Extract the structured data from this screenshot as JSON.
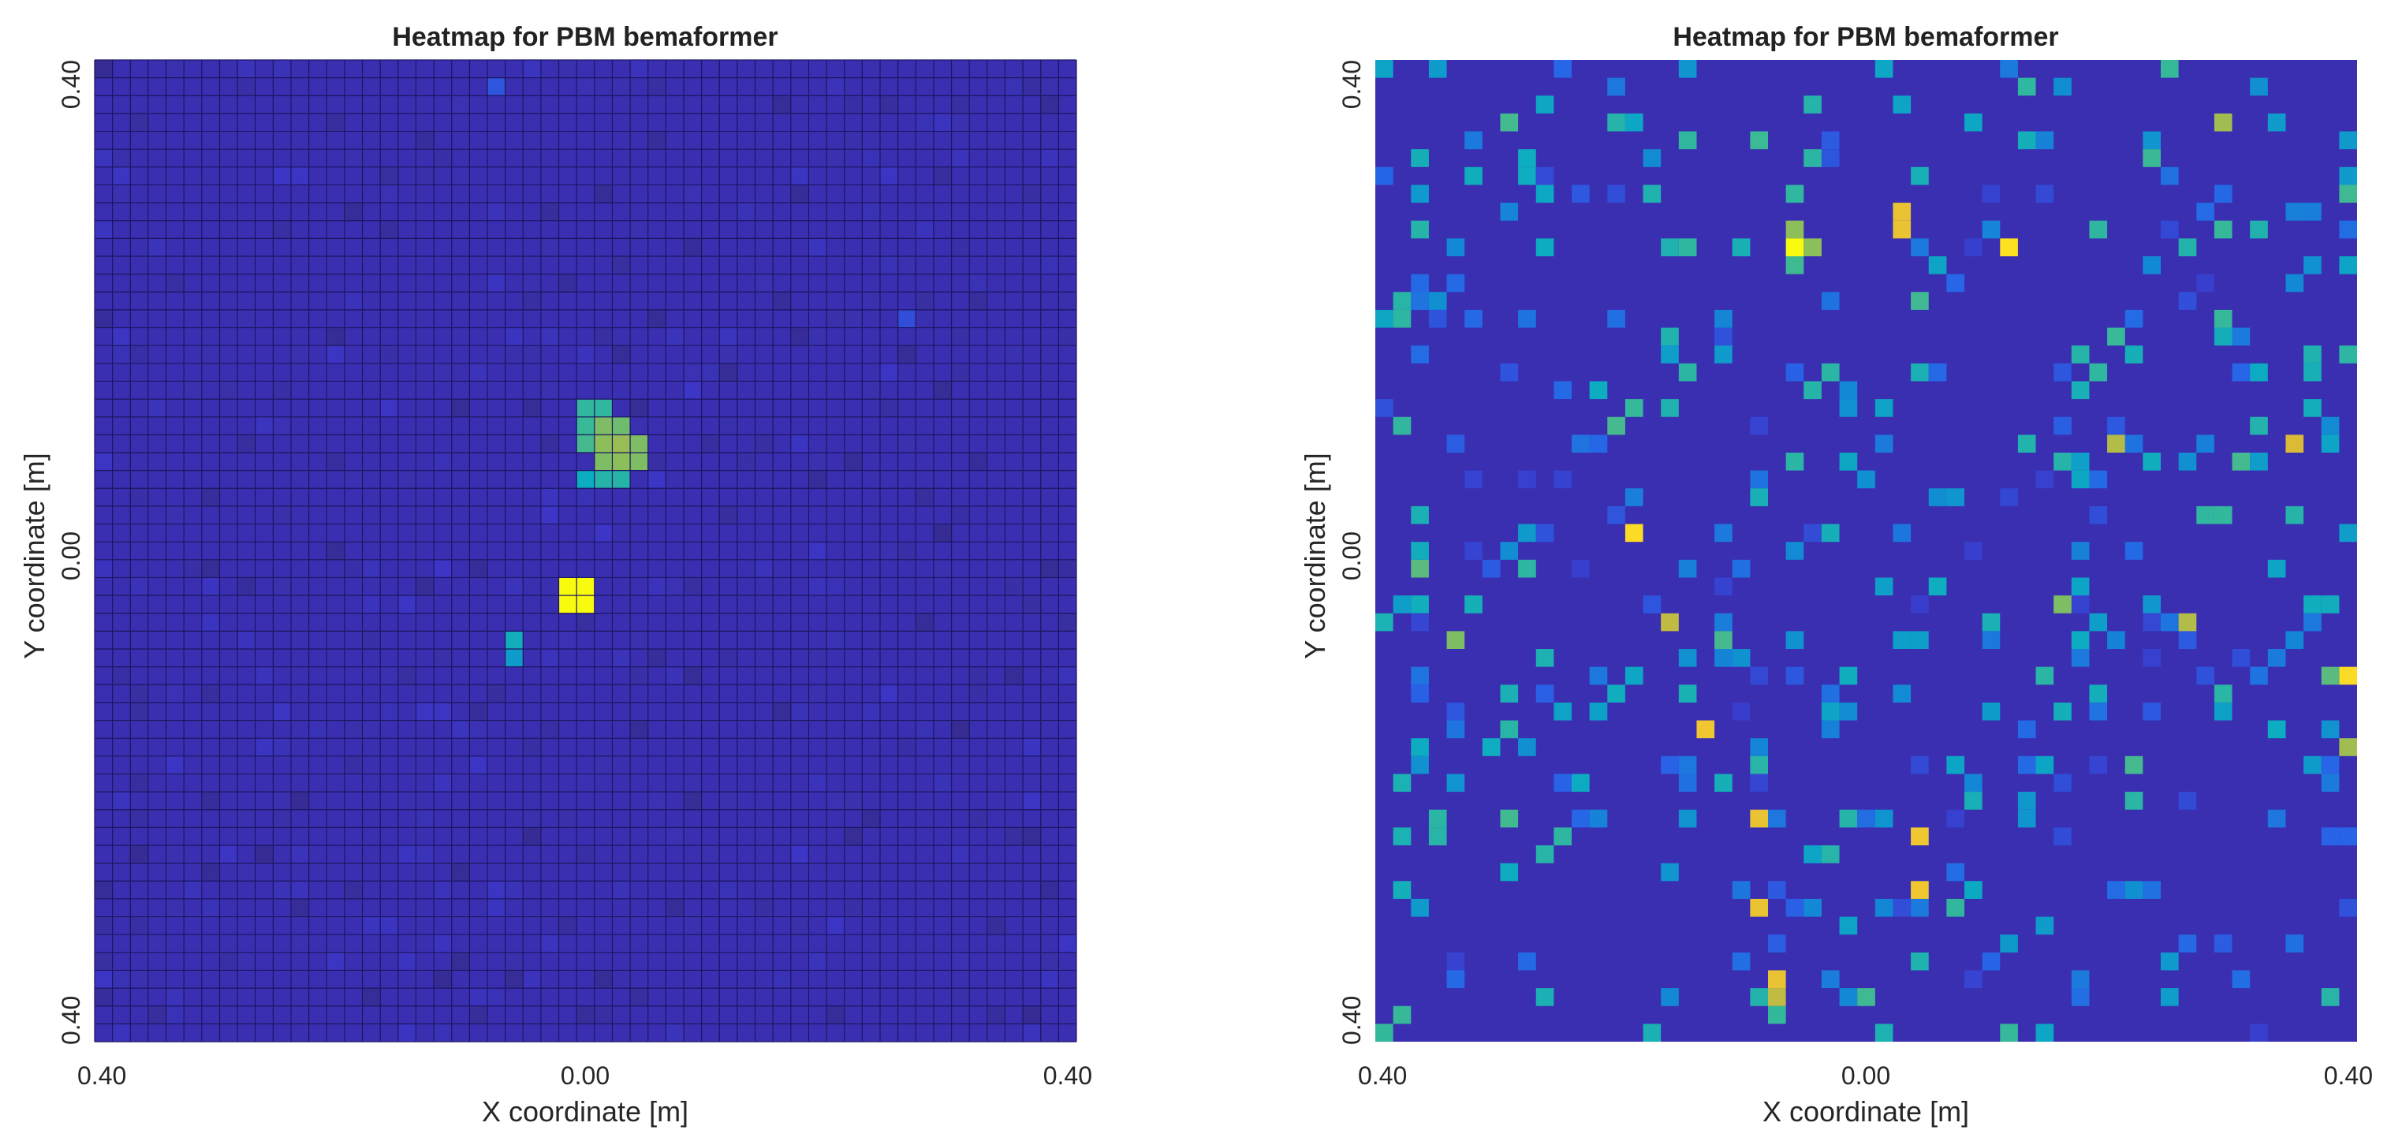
{
  "colors": {
    "background": "#3a2fb0",
    "gridline": "#1c1660",
    "colormap": "parula"
  },
  "chart_data": [
    {
      "type": "heatmap",
      "title": "Heatmap for PBM bemaformer",
      "xlabel": "X coordinate [m]",
      "ylabel": "Y coordinate [m]",
      "xlim": [
        -0.4,
        0.4
      ],
      "ylim": [
        -0.4,
        0.4
      ],
      "grid_n": 55,
      "grid": "on",
      "x_ticks": [
        "0.40",
        "0.00",
        "0.40"
      ],
      "y_ticks": [
        "0.40",
        "0.00",
        "0.40"
      ],
      "background_level": 0.04,
      "cells": [
        {
          "col": 22,
          "row": 1,
          "v": 0.18
        },
        {
          "col": 45,
          "row": 14,
          "v": 0.16
        },
        {
          "col": 23,
          "row": 29,
          "v": 0.08
        },
        {
          "col": 27,
          "row": 19,
          "v": 0.58
        },
        {
          "col": 28,
          "row": 19,
          "v": 0.58
        },
        {
          "col": 28,
          "row": 20,
          "v": 0.7
        },
        {
          "col": 29,
          "row": 20,
          "v": 0.68
        },
        {
          "col": 27,
          "row": 20,
          "v": 0.6
        },
        {
          "col": 28,
          "row": 21,
          "v": 0.72
        },
        {
          "col": 29,
          "row": 21,
          "v": 0.74
        },
        {
          "col": 30,
          "row": 21,
          "v": 0.7
        },
        {
          "col": 27,
          "row": 21,
          "v": 0.62
        },
        {
          "col": 28,
          "row": 22,
          "v": 0.7
        },
        {
          "col": 29,
          "row": 22,
          "v": 0.72
        },
        {
          "col": 30,
          "row": 22,
          "v": 0.7
        },
        {
          "col": 28,
          "row": 23,
          "v": 0.55
        },
        {
          "col": 29,
          "row": 23,
          "v": 0.55
        },
        {
          "col": 27,
          "row": 23,
          "v": 0.48
        },
        {
          "col": 26,
          "row": 29,
          "v": 1.0
        },
        {
          "col": 27,
          "row": 29,
          "v": 1.0
        },
        {
          "col": 26,
          "row": 30,
          "v": 1.0
        },
        {
          "col": 27,
          "row": 30,
          "v": 1.0
        },
        {
          "col": 23,
          "row": 32,
          "v": 0.5
        },
        {
          "col": 23,
          "row": 33,
          "v": 0.42
        }
      ]
    },
    {
      "type": "heatmap",
      "title": "Heatmap for PBM bemaformer",
      "xlabel": "X coordinate [m]",
      "ylabel": "Y coordinate [m]",
      "xlim": [
        -0.4,
        0.4
      ],
      "ylim": [
        -0.4,
        0.4
      ],
      "grid_n": 55,
      "grid": "off",
      "x_ticks": [
        "0.40",
        "0.00",
        "0.40"
      ],
      "y_ticks": [
        "0.40",
        "0.00",
        "0.40"
      ],
      "background_level": 0.03,
      "cells": [
        {
          "col": 0,
          "row": 0,
          "v": 0.45
        },
        {
          "col": 29,
          "row": 8,
          "v": 0.88
        },
        {
          "col": 29,
          "row": 9,
          "v": 0.88
        },
        {
          "col": 23,
          "row": 9,
          "v": 0.72
        },
        {
          "col": 23,
          "row": 10,
          "v": 1.0
        },
        {
          "col": 24,
          "row": 10,
          "v": 0.72
        },
        {
          "col": 35,
          "row": 10,
          "v": 0.96
        },
        {
          "col": 47,
          "row": 3,
          "v": 0.75
        },
        {
          "col": 14,
          "row": 26,
          "v": 0.95
        },
        {
          "col": 2,
          "row": 28,
          "v": 0.65
        },
        {
          "col": 4,
          "row": 32,
          "v": 0.7
        },
        {
          "col": 41,
          "row": 21,
          "v": 0.78
        },
        {
          "col": 51,
          "row": 21,
          "v": 0.84
        },
        {
          "col": 38,
          "row": 30,
          "v": 0.7
        },
        {
          "col": 45,
          "row": 31,
          "v": 0.78
        },
        {
          "col": 54,
          "row": 34,
          "v": 0.95
        },
        {
          "col": 53,
          "row": 34,
          "v": 0.65
        },
        {
          "col": 54,
          "row": 38,
          "v": 0.75
        },
        {
          "col": 18,
          "row": 37,
          "v": 0.9
        },
        {
          "col": 21,
          "row": 42,
          "v": 0.88
        },
        {
          "col": 30,
          "row": 43,
          "v": 0.9
        },
        {
          "col": 30,
          "row": 46,
          "v": 0.9
        },
        {
          "col": 21,
          "row": 47,
          "v": 0.88
        },
        {
          "col": 22,
          "row": 51,
          "v": 0.88
        },
        {
          "col": 22,
          "row": 52,
          "v": 0.8
        },
        {
          "col": 16,
          "row": 31,
          "v": 0.8
        }
      ]
    }
  ]
}
